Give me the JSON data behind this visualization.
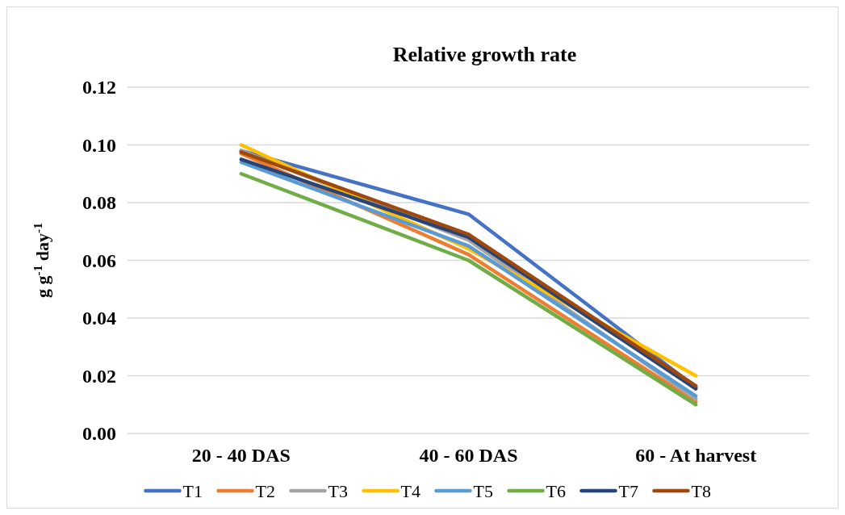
{
  "chart_data": {
    "type": "line",
    "title": "Relative  growth rate",
    "ylabel": "g g$^{-1}$ day$^{-1}$",
    "categories": [
      "20 - 40 DAS",
      "40 - 60 DAS",
      "60 - At harvest"
    ],
    "series": [
      {
        "name": "T1",
        "color": "#4472c4",
        "values": [
          0.098,
          0.076,
          0.016
        ]
      },
      {
        "name": "T2",
        "color": "#ed7d31",
        "values": [
          0.097,
          0.062,
          0.011
        ]
      },
      {
        "name": "T3",
        "color": "#a5a5a5",
        "values": [
          0.098,
          0.067,
          0.012
        ]
      },
      {
        "name": "T4",
        "color": "#ffc000",
        "values": [
          0.1,
          0.064,
          0.02
        ]
      },
      {
        "name": "T5",
        "color": "#5b9bd5",
        "values": [
          0.094,
          0.065,
          0.013
        ]
      },
      {
        "name": "T6",
        "color": "#70ad47",
        "values": [
          0.09,
          0.06,
          0.01
        ]
      },
      {
        "name": "T7",
        "color": "#264478",
        "values": [
          0.095,
          0.068,
          0.0155
        ]
      },
      {
        "name": "T8",
        "color": "#9e480e",
        "values": [
          0.0975,
          0.069,
          0.0165
        ]
      }
    ],
    "ylim": [
      0,
      0.12
    ],
    "yticks": [
      {
        "value": 0,
        "label": "0.00"
      },
      {
        "value": 0.02,
        "label": "0.02"
      },
      {
        "value": 0.04,
        "label": "0.04"
      },
      {
        "value": 0.06,
        "label": "0.06"
      },
      {
        "value": 0.08,
        "label": "0.08"
      },
      {
        "value": 0.1,
        "label": "0.10"
      },
      {
        "value": 0.12,
        "label": "0.12"
      }
    ],
    "grid": "y",
    "legend": "bottom",
    "marker": "none",
    "line_style": "solid"
  }
}
